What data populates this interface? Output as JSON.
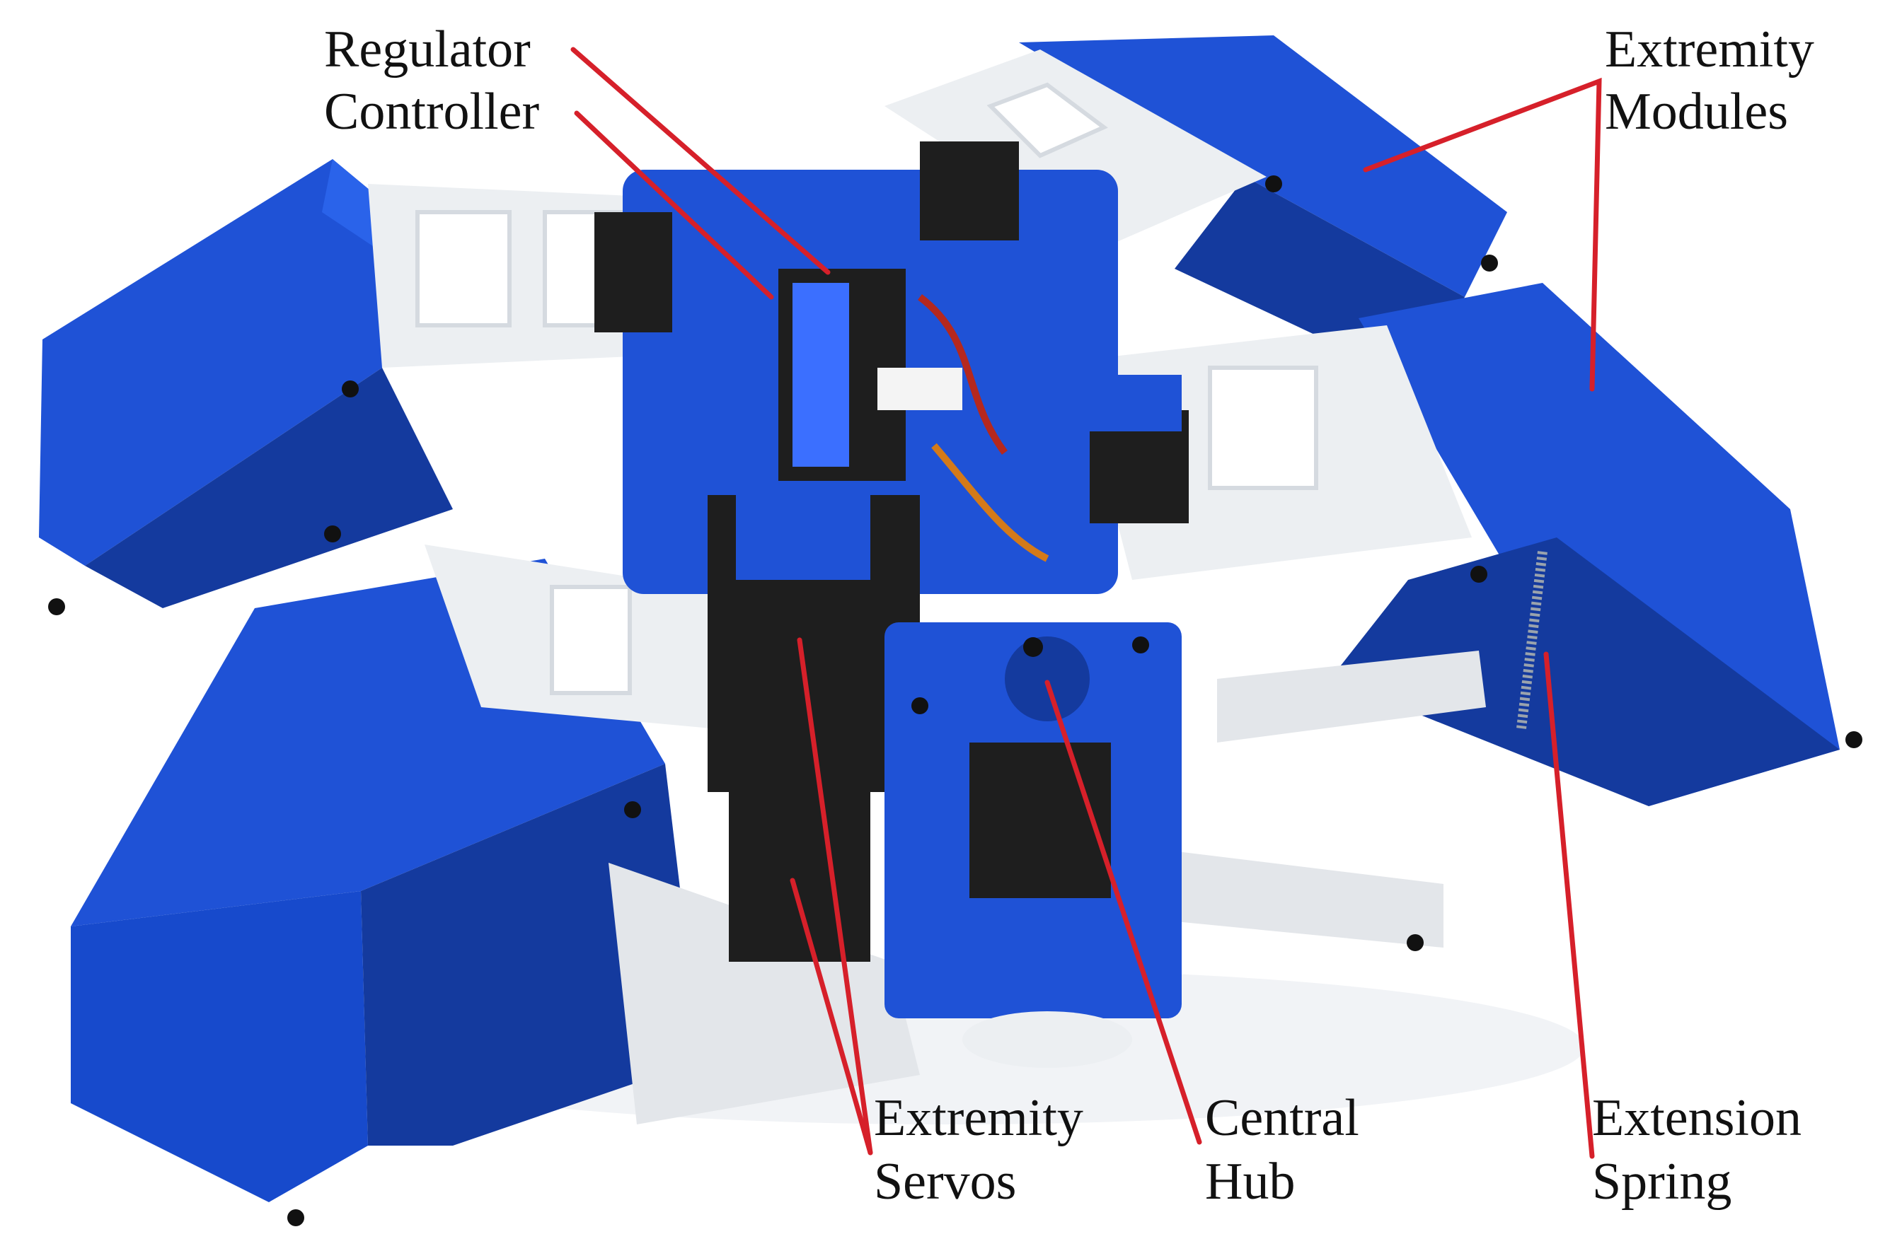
{
  "colors": {
    "plastic_blue": "#1f52d6",
    "plastic_blue_dark": "#143a9e",
    "plastic_white": "#eceff2",
    "servo_black": "#1e1e1e",
    "leader_red": "#d6202a",
    "label_text": "#111111"
  },
  "labels": {
    "regulator": "Regulator",
    "controller": "Controller",
    "extremity_modules_1": "Extremity",
    "extremity_modules_2": "Modules",
    "extremity_servos_1": "Extremity",
    "extremity_servos_2": "Servos",
    "central_hub_1": "Central",
    "central_hub_2": "Hub",
    "extension_spring_1": "Extension",
    "extension_spring_2": "Spring"
  }
}
